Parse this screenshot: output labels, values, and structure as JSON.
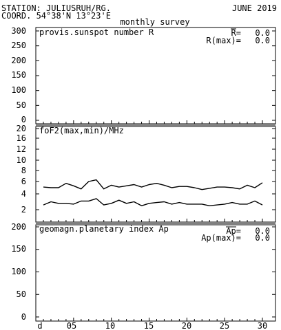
{
  "header": {
    "station": "STATION: JULIUSRUH/RG.",
    "coord": "COORD. 54°38'N 13°23'E",
    "period": "JUNE 2019",
    "subtitle": "monthly survey"
  },
  "chart_data": [
    {
      "type": "line",
      "title": "provis.sunspot number R",
      "ylim": [
        0,
        300
      ],
      "yticks": [
        "300",
        "250",
        "200",
        "150",
        "100",
        "50",
        "0"
      ],
      "stats": [
        {
          "label": "R=",
          "value": "0.0",
          "overline": true
        },
        {
          "label": "R(max)=",
          "value": "0.0",
          "overline": false
        }
      ],
      "series": []
    },
    {
      "type": "line",
      "title": "foF2(max,min)/MHz",
      "ylim": [
        0,
        20
      ],
      "yticks": [
        "20",
        "16",
        "12",
        "10",
        "8",
        "6",
        "4",
        "2"
      ],
      "ytick_values": [
        20,
        16,
        12,
        10,
        8,
        6,
        4,
        2
      ],
      "x": [
        1,
        2,
        3,
        4,
        5,
        6,
        7,
        8,
        9,
        10,
        11,
        12,
        13,
        14,
        15,
        16,
        17,
        18,
        19,
        20,
        21,
        22,
        23,
        24,
        25,
        26,
        27,
        28,
        29,
        30
      ],
      "series": [
        {
          "values": [
            5.1,
            5.0,
            5.0,
            5.7,
            5.3,
            4.8,
            6.0,
            6.3,
            4.8,
            5.4,
            5.1,
            5.3,
            5.5,
            5.1,
            5.5,
            5.7,
            5.4,
            5.0,
            5.2,
            5.2,
            5.0,
            4.7,
            4.9,
            5.1,
            5.1,
            5.0,
            4.8,
            5.4,
            5.0,
            5.8
          ]
        },
        {
          "values": [
            2.6,
            3.0,
            2.8,
            2.8,
            2.7,
            3.1,
            3.1,
            3.4,
            2.6,
            2.8,
            3.2,
            2.8,
            3.0,
            2.5,
            2.8,
            2.9,
            3.0,
            2.7,
            2.9,
            2.7,
            2.7,
            2.7,
            2.5,
            2.6,
            2.7,
            2.9,
            2.7,
            2.7,
            3.1,
            2.6
          ]
        }
      ]
    },
    {
      "type": "line",
      "title": "geomagn.planetary index Ap",
      "ylim": [
        0,
        200
      ],
      "yticks": [
        "200",
        "150",
        "100",
        "50",
        "0"
      ],
      "stats": [
        {
          "label": "Ap=",
          "value": "0.0",
          "overline": true
        },
        {
          "label": "Ap(max)=",
          "value": "0.0",
          "overline": false
        }
      ],
      "series": []
    }
  ],
  "xaxis": {
    "labels": [
      "d",
      "05",
      "10",
      "15",
      "20",
      "25",
      "30"
    ],
    "label_days": [
      1,
      5,
      10,
      15,
      20,
      25,
      30
    ],
    "days": 30
  }
}
